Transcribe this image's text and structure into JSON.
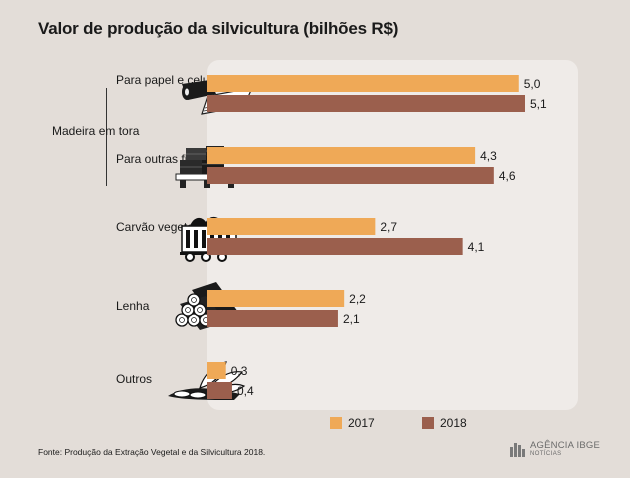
{
  "title": "Valor de produção da silvicultura (bilhões R$)",
  "group_label": "Madeira em tora",
  "source": "Fonte: Produção da Extração Vegetal e da Silvicultura 2018.",
  "logo": {
    "name": "AGÊNCIA IBGE",
    "sub": "NOTÍCIAS"
  },
  "colors": {
    "s2017": "#efa957",
    "s2018": "#9b5f4d",
    "background": "#e3ddd8",
    "panel": "#efebe8"
  },
  "icons": [
    "paper-roll-icon",
    "lumber-pallet-icon",
    "coal-cart-icon",
    "firewood-logs-icon",
    "leaves-icon"
  ],
  "chart_data": {
    "type": "bar",
    "orientation": "horizontal",
    "title": "Valor de produção da silvicultura (bilhões R$)",
    "categories": [
      "Para papel e celulose",
      "Para outras finalidades",
      "Carvão vegetal",
      "Lenha",
      "Outros"
    ],
    "series": [
      {
        "name": "2017",
        "values": [
          5.0,
          4.3,
          2.7,
          2.2,
          0.3
        ]
      },
      {
        "name": "2018",
        "values": [
          5.1,
          4.6,
          4.1,
          2.1,
          0.4
        ]
      }
    ],
    "data_labels": [
      [
        "5,0",
        "4,3",
        "2,7",
        "2,2",
        "0,3"
      ],
      [
        "5,1",
        "4,6",
        "4,1",
        "2,1",
        "0,4"
      ]
    ],
    "xlim": [
      0,
      5.1
    ],
    "legend": "bottom",
    "grid": false
  }
}
